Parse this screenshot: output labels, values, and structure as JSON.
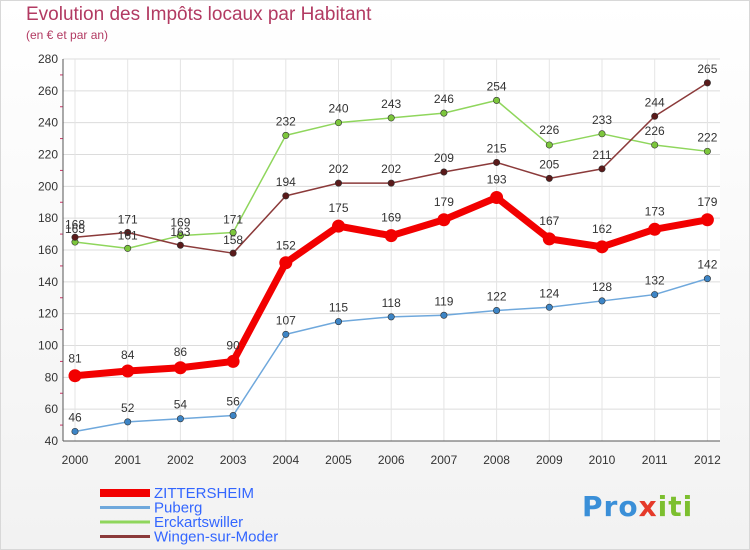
{
  "title": "Evolution des Impôts locaux par Habitant",
  "subtitle": "(en € et par an)",
  "logo": {
    "p1": "Pro",
    "p2": "x",
    "p3": "iti"
  },
  "chart_data": {
    "type": "line",
    "title": "Evolution des Impôts locaux par Habitant",
    "subtitle": "(en € et par an)",
    "xlabel": "",
    "ylabel": "",
    "ylim": [
      40,
      280
    ],
    "yticks": [
      40,
      60,
      80,
      100,
      120,
      140,
      160,
      180,
      200,
      220,
      240,
      260,
      280
    ],
    "grid": true,
    "legend_position": "bottom-left",
    "categories": [
      "2000",
      "2001",
      "2002",
      "2003",
      "2004",
      "2005",
      "2006",
      "2007",
      "2008",
      "2009",
      "2010",
      "2011",
      "2012"
    ],
    "series": [
      {
        "name": "Erckartswiller",
        "color": "#8fd65c",
        "marker": "#7cc63c",
        "width": 1.5,
        "values": [
          165,
          161,
          169,
          171,
          232,
          240,
          243,
          246,
          254,
          226,
          233,
          226,
          222
        ]
      },
      {
        "name": "Wingen-sur-Moder",
        "color": "#8b3a3a",
        "marker": "#5a1a1a",
        "width": 1.5,
        "values": [
          168,
          171,
          163,
          158,
          194,
          202,
          202,
          209,
          215,
          205,
          211,
          244,
          265
        ]
      },
      {
        "name": "Puberg",
        "color": "#6fa8dc",
        "marker": "#3d85c6",
        "width": 1.5,
        "values": [
          46,
          52,
          54,
          56,
          107,
          115,
          118,
          119,
          122,
          124,
          128,
          132,
          142
        ]
      },
      {
        "name": "ZITTERSHEIM",
        "color": "#f20000",
        "marker": "#f20000",
        "width": 7,
        "values": [
          81,
          84,
          86,
          90,
          152,
          175,
          169,
          179,
          193,
          167,
          162,
          173,
          179
        ]
      }
    ],
    "labels": [
      {
        "series": "ZITTERSHEIM",
        "values": [
          "81",
          "84",
          "86",
          "90",
          "152",
          "175",
          "169",
          "179",
          "193",
          "167",
          "162",
          "173",
          "179"
        ]
      },
      {
        "series": "Puberg",
        "values": [
          "46",
          "52",
          "54",
          "56",
          "107",
          "115",
          "118",
          "119",
          "122",
          "124",
          "128",
          "132",
          "142"
        ]
      },
      {
        "series": "Erckartswiller",
        "values": [
          "165",
          "161",
          "169",
          "171",
          "232",
          "240",
          "243",
          "246",
          "254",
          "226",
          "233",
          "226",
          "222"
        ]
      },
      {
        "series": "Wingen-sur-Moder",
        "values": [
          "168",
          "171",
          "163",
          "158",
          "194",
          "202",
          "202",
          "209",
          "215",
          "205",
          "211",
          "244",
          "265"
        ]
      }
    ],
    "legend": [
      "ZITTERSHEIM",
      "Puberg",
      "Erckartswiller",
      "Wingen-sur-Moder"
    ]
  }
}
